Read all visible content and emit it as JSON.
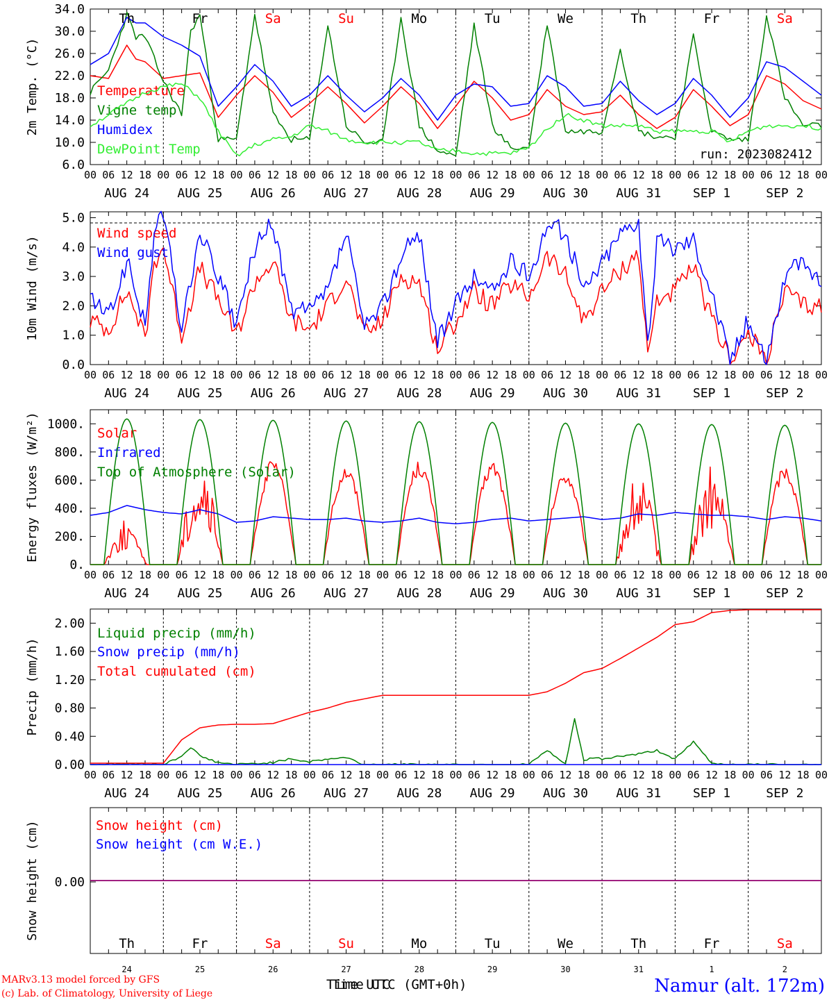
{
  "days": [
    {
      "dow": "Th",
      "date": "AUG 24",
      "num": "24",
      "weekend": false
    },
    {
      "dow": "Fr",
      "date": "AUG 25",
      "num": "25",
      "weekend": false
    },
    {
      "dow": "Sa",
      "date": "AUG 26",
      "num": "26",
      "weekend": true
    },
    {
      "dow": "Su",
      "date": "AUG 27",
      "num": "27",
      "weekend": true
    },
    {
      "dow": "Mo",
      "date": "AUG 28",
      "num": "28",
      "weekend": false
    },
    {
      "dow": "Tu",
      "date": "AUG 29",
      "num": "29",
      "weekend": false
    },
    {
      "dow": "We",
      "date": "AUG 30",
      "num": "30",
      "weekend": false
    },
    {
      "dow": "Th",
      "date": "AUG 31",
      "num": "31",
      "weekend": false
    },
    {
      "dow": "Fr",
      "date": "SEP  1",
      "num": "1",
      "weekend": false
    },
    {
      "dow": "Sa",
      "date": "SEP  2",
      "num": "2",
      "weekend": true
    }
  ],
  "hour_labels": [
    "00",
    "06",
    "12",
    "18"
  ],
  "hour_end_label": "00",
  "run_label": "run: 2023082412",
  "footer": {
    "model": "MARv3.13 model forced by GFS",
    "credit": "(c) Lab. of Climatology, University of Liege",
    "xlabel_a": "Time UTC",
    "xlabel_b": "Time UTC (GMT+0h)",
    "station": "Namur (alt. 172m)"
  },
  "colors": {
    "red": "#ff0000",
    "green": "#008000",
    "blue": "#0000ff",
    "lightgreen": "#33ee33",
    "purple": "#800080",
    "weekend": "#ff0000"
  },
  "chart_data": [
    {
      "type": "line",
      "ylabel": "2m Temp. (°C)",
      "ylim": [
        6,
        34
      ],
      "yticks": [
        "6.0",
        "10.0",
        "14.0",
        "18.0",
        "22.0",
        "26.0",
        "30.0",
        "34.0"
      ],
      "ytick_values": [
        6,
        10,
        14,
        18,
        22,
        26,
        30,
        34
      ],
      "x_unit": "hours since AUG 24 00 UTC",
      "xlim": [
        0,
        240
      ],
      "series": [
        {
          "name": "Temperature",
          "color": "red",
          "x": [
            0,
            6,
            12,
            15,
            18,
            24,
            30,
            36,
            42,
            48,
            54,
            60,
            66,
            72,
            78,
            84,
            90,
            96,
            102,
            108,
            114,
            120,
            126,
            132,
            138,
            144,
            150,
            156,
            162,
            168,
            174,
            180,
            186,
            192,
            198,
            204,
            210,
            216,
            222,
            228,
            234,
            240
          ],
          "y": [
            22,
            21.5,
            27.5,
            25,
            24.5,
            21.5,
            22,
            22.5,
            14.5,
            18.5,
            22,
            19,
            14.5,
            17,
            20,
            17,
            13.5,
            16.5,
            20,
            17,
            12.5,
            16.5,
            21,
            18,
            14,
            15,
            19.5,
            16.5,
            15,
            15.5,
            18.5,
            15,
            12.5,
            14.5,
            19.5,
            16.5,
            13,
            15,
            22,
            20.5,
            17.5,
            16
          ]
        },
        {
          "name": "Vigne temp",
          "color": "green",
          "x": [
            0,
            6,
            12,
            15,
            18,
            24,
            30,
            33,
            36,
            42,
            48,
            54,
            60,
            66,
            72,
            78,
            84,
            90,
            96,
            102,
            108,
            114,
            120,
            126,
            132,
            138,
            144,
            150,
            156,
            162,
            168,
            174,
            180,
            186,
            192,
            198,
            204,
            210,
            216,
            222,
            228,
            234,
            240
          ],
          "y": [
            19,
            23,
            33,
            29,
            29,
            21,
            15,
            30,
            33,
            10.5,
            10.5,
            33,
            15,
            10.5,
            10.5,
            31,
            13,
            10,
            10,
            32.5,
            13,
            8.5,
            7.5,
            31,
            13,
            9,
            9,
            31.5,
            12,
            12,
            12,
            27,
            12,
            11,
            11,
            29,
            12,
            10.5,
            10.5,
            33,
            18,
            13,
            13
          ]
        },
        {
          "name": "Humidex",
          "color": "blue",
          "x": [
            0,
            6,
            12,
            15,
            18,
            24,
            30,
            36,
            42,
            48,
            54,
            60,
            66,
            72,
            78,
            84,
            90,
            96,
            102,
            108,
            114,
            120,
            126,
            132,
            138,
            144,
            150,
            156,
            162,
            168,
            174,
            180,
            186,
            192,
            198,
            204,
            210,
            216,
            222,
            228,
            234,
            240
          ],
          "y": [
            24,
            26,
            32.5,
            31.5,
            31.5,
            29,
            27.5,
            25.5,
            16.5,
            20,
            24,
            21,
            16.5,
            18.5,
            22,
            18.5,
            15.5,
            18,
            21.5,
            18.5,
            14,
            18.5,
            20.5,
            20,
            16.5,
            17,
            22,
            20,
            16.5,
            17,
            21,
            17.5,
            15,
            17,
            21.5,
            18.5,
            14.5,
            18,
            24.5,
            23.5,
            21,
            18.5
          ]
        },
        {
          "name": "DewPoint Temp",
          "color": "lightgreen",
          "x": [
            0,
            6,
            12,
            18,
            24,
            30,
            36,
            42,
            48,
            54,
            60,
            66,
            72,
            78,
            84,
            90,
            96,
            102,
            108,
            114,
            120,
            126,
            132,
            138,
            144,
            150,
            156,
            162,
            168,
            174,
            180,
            186,
            192,
            198,
            204,
            210,
            216,
            222,
            228,
            234,
            240
          ],
          "y": [
            13,
            15,
            17,
            19,
            20,
            20.5,
            18,
            12,
            7.5,
            9.5,
            10.5,
            11,
            13,
            12,
            10.5,
            10,
            10,
            10,
            10,
            8.5,
            8.5,
            8,
            8,
            8,
            9,
            12.5,
            15,
            14,
            13,
            13,
            13,
            12,
            12,
            12,
            12,
            10,
            12,
            13,
            13,
            13,
            12.5
          ]
        }
      ]
    },
    {
      "type": "line",
      "ylabel": "10m Wind (m/s)",
      "ylim": [
        0,
        5.2
      ],
      "yticks": [
        "0.0",
        "1.0",
        "2.0",
        "3.0",
        "4.0",
        "5.0"
      ],
      "ytick_values": [
        0,
        1,
        2,
        3,
        4,
        5
      ],
      "x_unit": "hours since AUG 24 00 UTC",
      "xlim": [
        0,
        240
      ],
      "series": [
        {
          "name": "Wind speed",
          "color": "red",
          "x": [
            0,
            6,
            12,
            15,
            18,
            21,
            24,
            30,
            36,
            42,
            48,
            54,
            60,
            66,
            72,
            78,
            84,
            90,
            96,
            102,
            108,
            114,
            120,
            126,
            132,
            138,
            144,
            150,
            156,
            162,
            168,
            174,
            180,
            183,
            186,
            192,
            198,
            204,
            210,
            216,
            222,
            228,
            234,
            240
          ],
          "y": [
            1.5,
            1.2,
            2.5,
            1.8,
            0.8,
            3.5,
            4,
            1,
            3.3,
            2.2,
            1,
            2.8,
            3.5,
            1.5,
            1.2,
            2,
            3,
            1,
            1.5,
            3,
            2.8,
            0.5,
            1.5,
            2.5,
            2,
            2.7,
            2.3,
            3.7,
            3,
            1.5,
            2.5,
            3.2,
            3.8,
            0.3,
            2.2,
            2.5,
            3.3,
            1.5,
            0.2,
            1,
            0.2,
            2.5,
            2,
            2
          ]
        },
        {
          "name": "Wind gust",
          "color": "blue",
          "x": [
            0,
            6,
            12,
            15,
            18,
            21,
            24,
            30,
            36,
            42,
            48,
            54,
            60,
            66,
            72,
            78,
            84,
            90,
            96,
            102,
            108,
            114,
            120,
            126,
            132,
            138,
            144,
            150,
            156,
            162,
            168,
            174,
            180,
            183,
            186,
            192,
            198,
            204,
            210,
            216,
            222,
            228,
            234,
            240
          ],
          "y": [
            2.3,
            1.6,
            3.5,
            2.5,
            1.2,
            4.5,
            5.2,
            1.2,
            4.5,
            3,
            1.3,
            4,
            4.8,
            1.8,
            1.8,
            2.5,
            4.5,
            1.2,
            2,
            3.7,
            4.5,
            0.8,
            2,
            3,
            2.5,
            3.5,
            3,
            4.8,
            4.5,
            2.5,
            3.5,
            4.5,
            5,
            0.5,
            4.2,
            4,
            4.3,
            2.5,
            0.2,
            1.5,
            0.2,
            3,
            3.5,
            2.8
          ]
        }
      ]
    },
    {
      "type": "line",
      "ylabel": "Energy fluxes (W/m²)",
      "ylim": [
        0,
        1100
      ],
      "yticks": [
        "0.",
        "200.",
        "400.",
        "600.",
        "800.",
        "1000."
      ],
      "ytick_values": [
        0,
        200,
        400,
        600,
        800,
        1000
      ],
      "x_unit": "hours since AUG 24 00 UTC",
      "xlim": [
        0,
        240
      ],
      "series": [
        {
          "name": "Solar",
          "color": "red",
          "day_peaks": [
            320,
            720,
            750,
            710,
            740,
            740,
            670,
            640,
            710,
            710
          ]
        },
        {
          "name": "Infrared",
          "color": "blue",
          "x": [
            0,
            6,
            12,
            18,
            24,
            30,
            36,
            42,
            48,
            54,
            60,
            66,
            72,
            78,
            84,
            90,
            96,
            102,
            108,
            114,
            120,
            126,
            132,
            138,
            144,
            150,
            156,
            162,
            168,
            174,
            180,
            186,
            192,
            198,
            204,
            210,
            216,
            222,
            228,
            234,
            240
          ],
          "y": [
            350,
            370,
            420,
            390,
            370,
            360,
            390,
            360,
            300,
            310,
            340,
            330,
            320,
            320,
            330,
            310,
            300,
            310,
            330,
            300,
            290,
            300,
            320,
            330,
            310,
            320,
            330,
            340,
            320,
            330,
            360,
            350,
            370,
            360,
            350,
            350,
            340,
            320,
            340,
            330,
            310
          ]
        },
        {
          "name": "Top of Atmosphere (Solar)",
          "color": "green",
          "day_peaks": [
            1035,
            1030,
            1025,
            1020,
            1015,
            1010,
            1005,
            1000,
            995,
            990
          ]
        }
      ]
    },
    {
      "type": "line",
      "ylabel": "Precip (mm/h)",
      "ylim": [
        0,
        2.2
      ],
      "yticks": [
        "0.00",
        "0.40",
        "0.80",
        "1.20",
        "1.60",
        "2.00"
      ],
      "ytick_values": [
        0,
        0.4,
        0.8,
        1.2,
        1.6,
        2.0
      ],
      "x_unit": "hours since AUG 24 00 UTC",
      "xlim": [
        0,
        240
      ],
      "series": [
        {
          "name": "Liquid precip (mm/h)",
          "color": "green",
          "x": [
            0,
            12,
            24,
            30,
            33,
            36,
            42,
            48,
            60,
            66,
            72,
            78,
            84,
            90,
            96,
            120,
            144,
            150,
            156,
            159,
            162,
            165,
            168,
            174,
            180,
            186,
            192,
            198,
            204,
            210,
            240
          ],
          "y": [
            0,
            0.01,
            0,
            0.12,
            0.25,
            0.12,
            0.03,
            0,
            0.03,
            0.08,
            0.04,
            0.08,
            0.1,
            0,
            0,
            0,
            0,
            0.2,
            0,
            0.65,
            0.05,
            0.1,
            0.08,
            0.12,
            0.15,
            0.2,
            0.08,
            0.32,
            0.02,
            0,
            0
          ]
        },
        {
          "name": "Snow precip (mm/h)",
          "color": "blue",
          "x": [
            0,
            240
          ],
          "y": [
            0,
            0
          ]
        },
        {
          "name": "Total cumulated (cm)",
          "color": "red",
          "x": [
            0,
            24,
            30,
            36,
            42,
            48,
            54,
            60,
            66,
            72,
            78,
            84,
            96,
            120,
            144,
            150,
            156,
            162,
            168,
            174,
            180,
            186,
            192,
            198,
            204,
            210,
            216,
            240
          ],
          "y": [
            0.02,
            0.02,
            0.35,
            0.52,
            0.56,
            0.57,
            0.57,
            0.58,
            0.66,
            0.74,
            0.8,
            0.88,
            0.98,
            0.98,
            0.98,
            1.03,
            1.15,
            1.3,
            1.36,
            1.5,
            1.65,
            1.8,
            1.98,
            2.02,
            2.15,
            2.18,
            2.19,
            2.19
          ]
        }
      ]
    },
    {
      "type": "line",
      "ylabel": "Snow height (cm)",
      "yticks": [
        "0.00"
      ],
      "ytick_values": [
        0
      ],
      "x_unit": "hours since AUG 24 00 UTC",
      "xlim": [
        0,
        240
      ],
      "series": [
        {
          "name": "Snow height (cm)",
          "color": "red",
          "x": [
            0,
            240
          ],
          "y": [
            0,
            0
          ]
        },
        {
          "name": "Snow height (cm W.E.)",
          "color": "blue",
          "x": [
            0,
            240
          ],
          "y": [
            0,
            0
          ]
        }
      ]
    }
  ]
}
